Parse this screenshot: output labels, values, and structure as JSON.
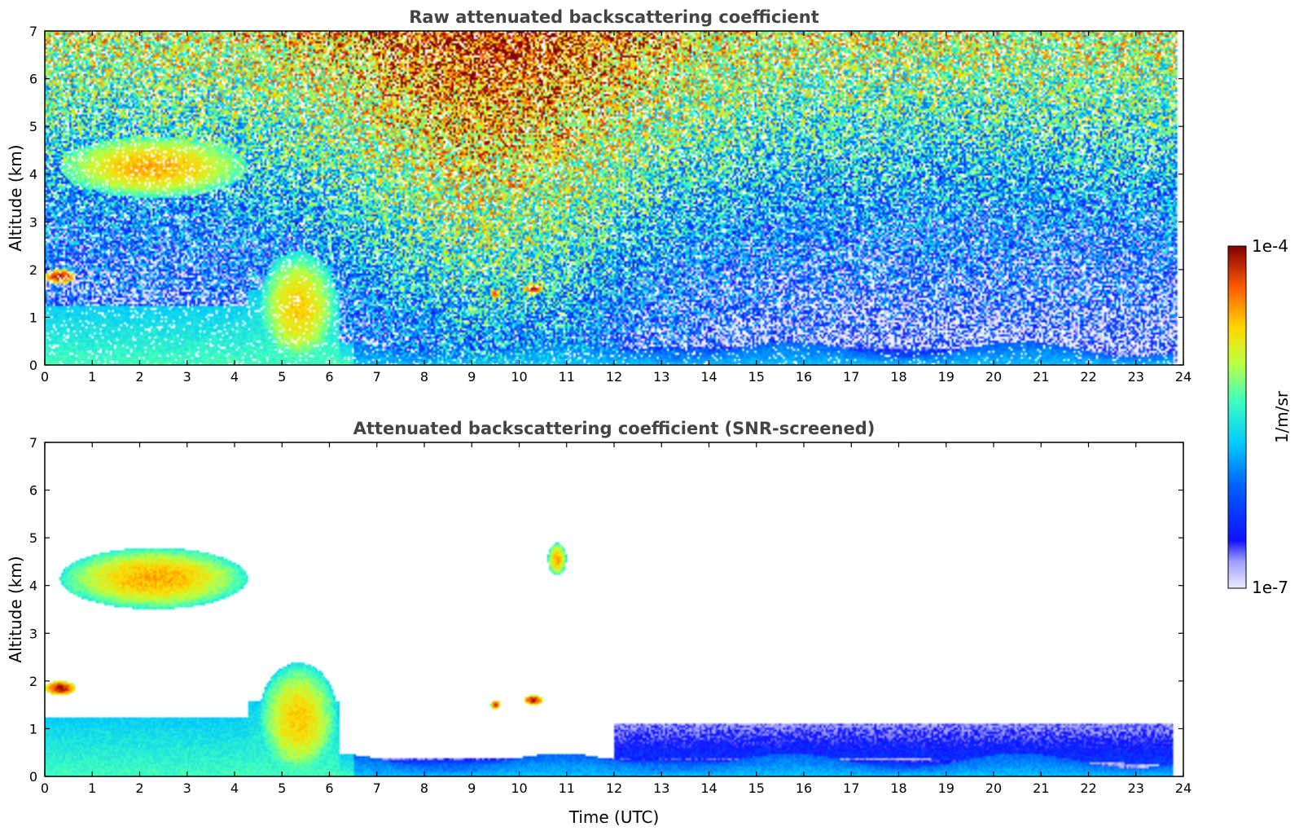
{
  "chart_data": [
    {
      "type": "heatmap",
      "title": "Raw attenuated backscattering coefficient",
      "xlabel": "",
      "ylabel": "Altitude (km)",
      "xlim": [
        0,
        24
      ],
      "ylim": [
        0,
        7
      ],
      "x_ticks": [
        "0",
        "1",
        "2",
        "3",
        "4",
        "5",
        "6",
        "7",
        "8",
        "9",
        "10",
        "11",
        "12",
        "13",
        "14",
        "15",
        "16",
        "17",
        "18",
        "19",
        "20",
        "21",
        "22",
        "23",
        "24"
      ],
      "y_ticks": [
        "0",
        "1",
        "2",
        "3",
        "4",
        "5",
        "6",
        "7"
      ],
      "grid": false,
      "screened": false,
      "features": [
        {
          "t0": 0.3,
          "t1": 4.3,
          "z_base": 3.5,
          "z_top": 4.8,
          "log_beta": -4.6
        },
        {
          "t0": 0.0,
          "t1": 0.65,
          "z_base": 1.7,
          "z_top": 2.0,
          "log_beta": -4.1
        },
        {
          "t0": 4.5,
          "t1": 6.2,
          "z_base": 0.0,
          "z_top": 2.4,
          "log_beta": -4.7
        },
        {
          "t0": 9.4,
          "t1": 9.6,
          "z_base": 1.4,
          "z_top": 1.6,
          "log_beta": -4.2
        },
        {
          "t0": 10.1,
          "t1": 10.5,
          "z_base": 1.5,
          "z_top": 1.7,
          "log_beta": -4.1
        },
        {
          "t0": 10.6,
          "t1": 11.0,
          "z_base": 4.2,
          "z_top": 4.9,
          "log_beta": -4.6
        },
        {
          "t0": 0.0,
          "t1": 23.8,
          "z_base": 0.0,
          "z_top": 0.4,
          "log_beta": -6.0
        }
      ]
    },
    {
      "type": "heatmap",
      "title": "Attenuated backscattering coefficient (SNR-screened)",
      "xlabel": "Time (UTC)",
      "ylabel": "Altitude (km)",
      "xlim": [
        0,
        24
      ],
      "ylim": [
        0,
        7
      ],
      "x_ticks": [
        "0",
        "1",
        "2",
        "3",
        "4",
        "5",
        "6",
        "7",
        "8",
        "9",
        "10",
        "11",
        "12",
        "13",
        "14",
        "15",
        "16",
        "17",
        "18",
        "19",
        "20",
        "21",
        "22",
        "23",
        "24"
      ],
      "y_ticks": [
        "0",
        "1",
        "2",
        "3",
        "4",
        "5",
        "6",
        "7"
      ],
      "grid": false,
      "screened": true
    }
  ],
  "colorbar": {
    "label": "1/m/sr",
    "max_label": "1e-4",
    "min_label": "1e-7",
    "scale": "log",
    "range": [
      1e-07,
      0.0001
    ],
    "colormap": "jet"
  }
}
